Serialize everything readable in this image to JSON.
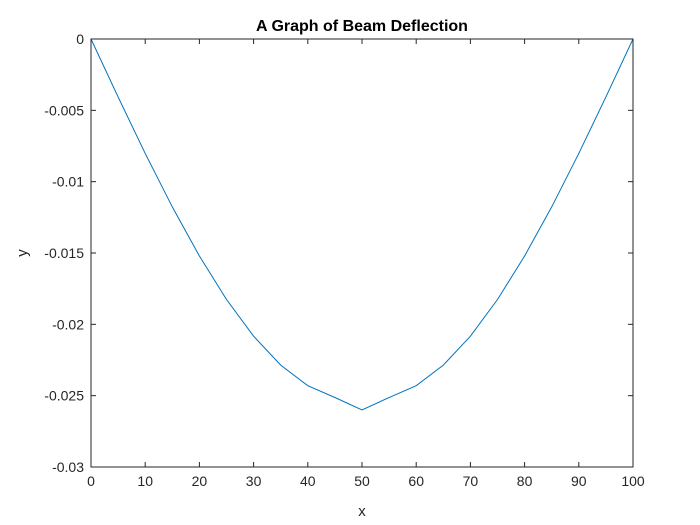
{
  "chart_data": {
    "type": "line",
    "title": "A Graph of Beam Deflection",
    "xlabel": "x",
    "ylabel": "y",
    "xlim": [
      0,
      100
    ],
    "ylim": [
      -0.03,
      0
    ],
    "xticks": [
      0,
      10,
      20,
      30,
      40,
      50,
      60,
      70,
      80,
      90,
      100
    ],
    "xtick_labels": [
      "0",
      "10",
      "20",
      "30",
      "40",
      "50",
      "60",
      "70",
      "80",
      "90",
      "100"
    ],
    "yticks": [
      0,
      -0.005,
      -0.01,
      -0.015,
      -0.02,
      -0.025,
      -0.03
    ],
    "ytick_labels": [
      "0",
      "-0.005",
      "-0.01",
      "-0.015",
      "-0.02",
      "-0.025",
      "-0.03"
    ],
    "grid": false,
    "line_color": "#0072BD",
    "series": [
      {
        "x": [
          0,
          5,
          10,
          15,
          20,
          25,
          30,
          35,
          40,
          45,
          50,
          55,
          60,
          65,
          70,
          75,
          80,
          85,
          90,
          95,
          100
        ],
        "values": [
          0,
          -0.00406,
          -0.00802,
          -0.01177,
          -0.01521,
          -0.01826,
          -0.02083,
          -0.02286,
          -0.0243,
          -0.02513,
          -0.026,
          -0.02513,
          -0.0243,
          -0.02286,
          -0.02083,
          -0.01826,
          -0.01521,
          -0.01177,
          -0.00802,
          -0.00406,
          0
        ]
      }
    ]
  }
}
